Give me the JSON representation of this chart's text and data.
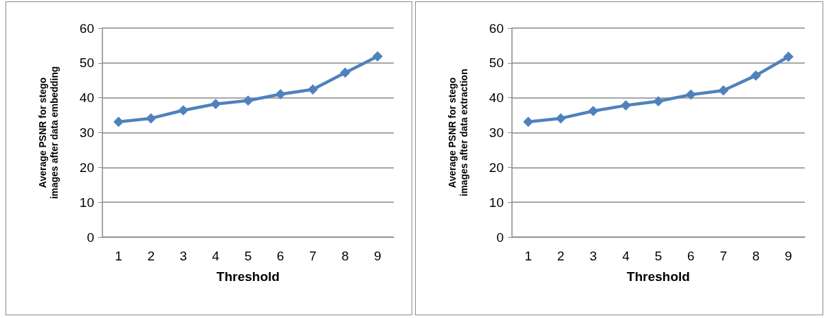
{
  "chart_data": [
    {
      "type": "line",
      "xlabel": "Threshold",
      "ylabel": "Average PSNR for stego images after data embedding",
      "categories": [
        "1",
        "2",
        "3",
        "4",
        "5",
        "6",
        "7",
        "8",
        "9"
      ],
      "series": [
        {
          "color": "#4f81bd",
          "values": [
            33.1,
            34.1,
            36.4,
            38.2,
            39.2,
            41.0,
            42.4,
            47.2,
            51.9
          ]
        }
      ],
      "ylim": [
        0,
        60
      ],
      "yticks": [
        0,
        10,
        20,
        30,
        40,
        50,
        60
      ],
      "grid": "y",
      "marker": "diamond",
      "line_style": "solid"
    },
    {
      "type": "line",
      "xlabel": "Threshold",
      "ylabel": "Average PSNR for stego images after data extraction",
      "categories": [
        "1",
        "2",
        "3",
        "4",
        "5",
        "6",
        "7",
        "8",
        "9"
      ],
      "series": [
        {
          "color": "#4f81bd",
          "values": [
            33.1,
            34.1,
            36.2,
            37.8,
            39.0,
            40.9,
            42.1,
            46.4,
            51.8
          ]
        }
      ],
      "ylim": [
        0,
        60
      ],
      "yticks": [
        0,
        10,
        20,
        30,
        40,
        50,
        60
      ],
      "grid": "y",
      "marker": "diamond",
      "line_style": "solid"
    }
  ]
}
